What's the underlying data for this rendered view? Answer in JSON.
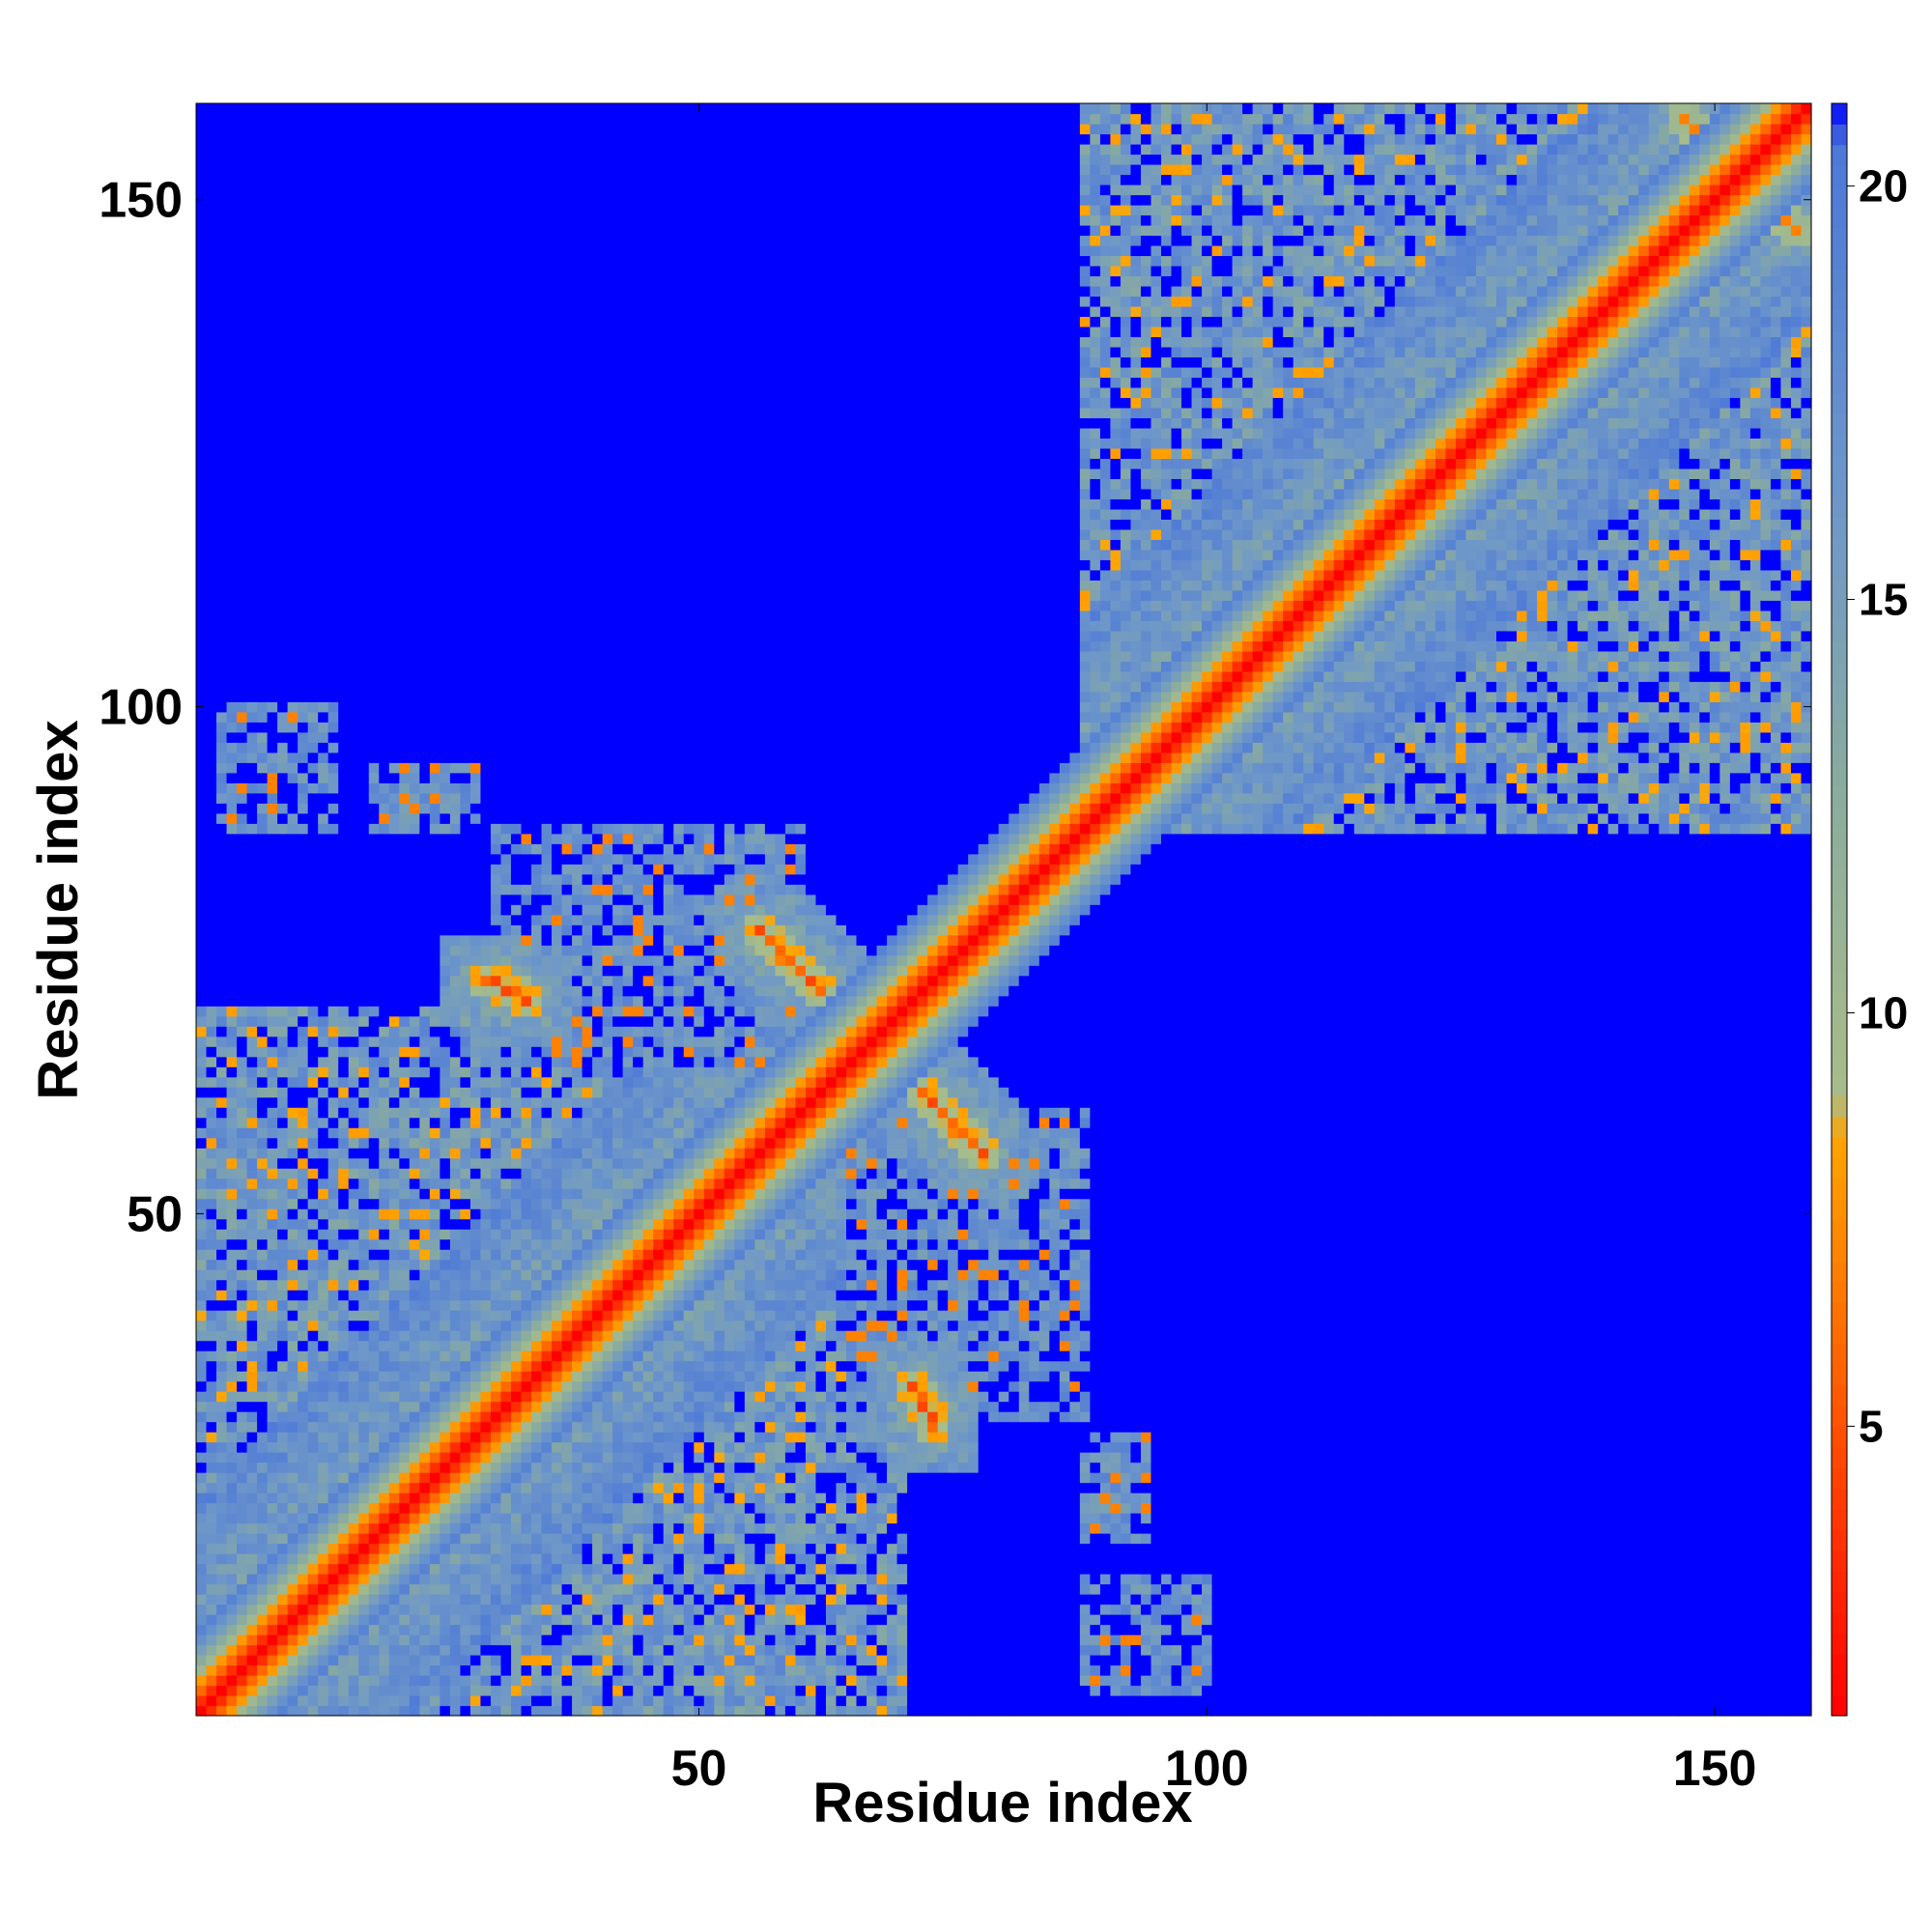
{
  "chart_data": {
    "type": "heatmap",
    "title": "",
    "xlabel": "Residue index",
    "ylabel": "Residue index",
    "n_residues": 159,
    "xlim": [
      1,
      159
    ],
    "ylim": [
      1,
      159
    ],
    "x_ticks": [
      "50",
      "100",
      "150"
    ],
    "x_tick_values": [
      50,
      100,
      150
    ],
    "y_ticks": [
      "50",
      "100",
      "150"
    ],
    "y_tick_values": [
      50,
      100,
      150
    ],
    "colorbar": {
      "range": [
        1.5,
        21
      ],
      "ticks": [
        "5",
        "10",
        "15",
        "20"
      ],
      "tick_values": [
        5,
        10,
        15,
        20
      ],
      "stops": [
        {
          "value": 1.5,
          "color": "#ff0000"
        },
        {
          "value": 4.5,
          "color": "#ff4500"
        },
        {
          "value": 8.5,
          "color": "#ffa500"
        },
        {
          "value": 9.0,
          "color": "#a8bd8a"
        },
        {
          "value": 13.0,
          "color": "#88aaa0"
        },
        {
          "value": 16.0,
          "color": "#6f98c8"
        },
        {
          "value": 20.5,
          "color": "#4d78d8"
        },
        {
          "value": 21.0,
          "color": "#0000ff"
        }
      ]
    },
    "background_value": 21,
    "diagonal_band_values": [
      1.5,
      3.5,
      6,
      8,
      10,
      12.5,
      15,
      17,
      19
    ],
    "structure_blocks": [
      {
        "residues": [
          1,
          70
        ],
        "mean_distance": 15
      },
      {
        "residues": [
          88,
          159
        ],
        "mean_distance": 15
      },
      {
        "residues": [
          95,
          159
        ],
        "mean_distance": 16
      }
    ],
    "antiparallel_contacts": [
      {
        "i_from": 56,
        "i_to": 78,
        "j_from": 78,
        "j_to": 56,
        "distance": 6
      },
      {
        "i_from": 29,
        "i_to": 33,
        "j_from": 73,
        "j_to": 71,
        "distance": 6
      },
      {
        "i_from": 147,
        "i_to": 158,
        "j_from": 158,
        "j_to": 147,
        "distance": 7
      }
    ],
    "off_block_patches": [
      {
        "x": [
          3,
          14
        ],
        "y": [
          88,
          100
        ],
        "mean_distance": 15
      },
      {
        "x": [
          18,
          28
        ],
        "y": [
          88,
          94
        ],
        "mean_distance": 16
      },
      {
        "x": [
          88,
          100
        ],
        "y": [
          3,
          14
        ],
        "mean_distance": 15
      },
      {
        "x": [
          88,
          94
        ],
        "y": [
          18,
          28
        ],
        "mean_distance": 16
      },
      {
        "x": [
          65,
          88
        ],
        "y": [
          30,
          60
        ],
        "mean_distance": 16
      },
      {
        "x": [
          30,
          60
        ],
        "y": [
          65,
          88
        ],
        "mean_distance": 16
      }
    ]
  }
}
